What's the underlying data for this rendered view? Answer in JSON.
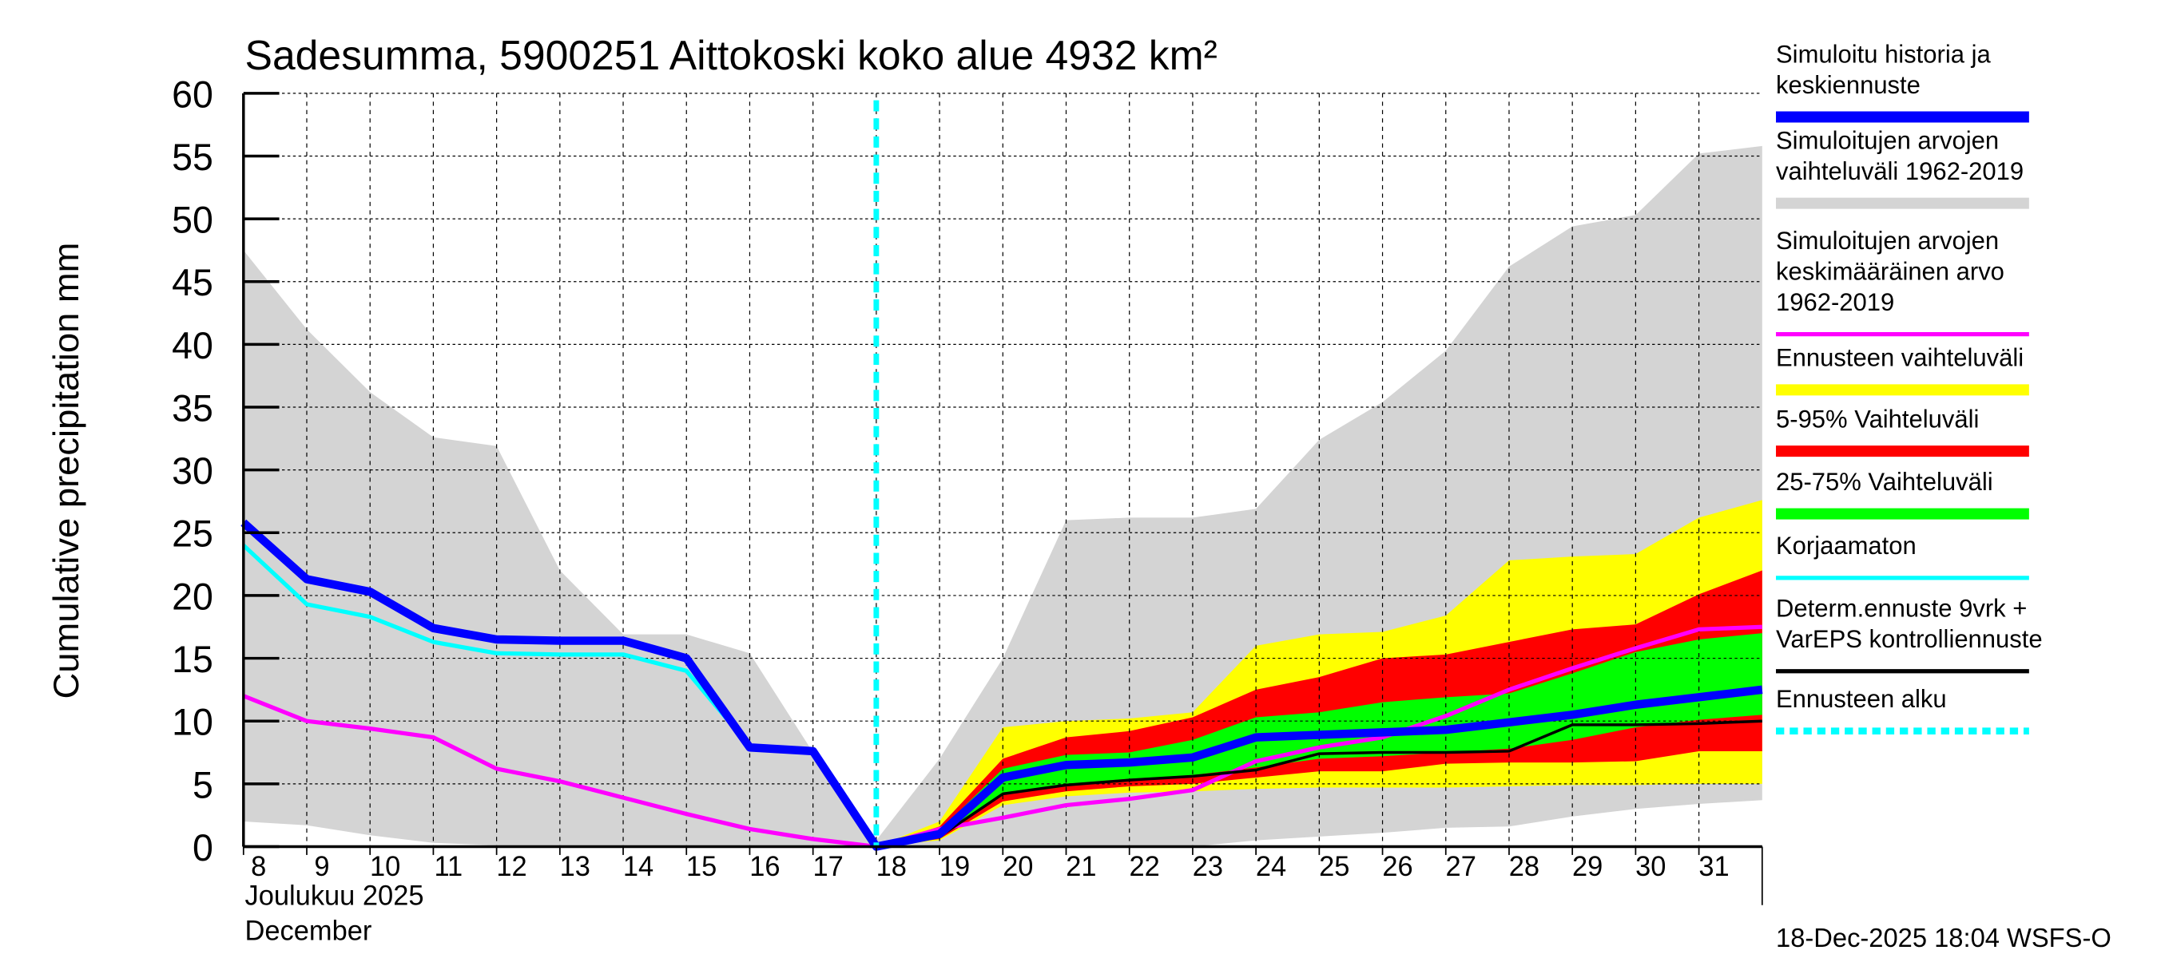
{
  "chart_data": {
    "type": "area",
    "title": "Sadesumma, 5900251 Aittokoski koko alue 4932 km²",
    "ylabel": "Cumulative precipitation   mm",
    "xlabel_lines": [
      "Joulukuu  2025",
      "December"
    ],
    "ylim": [
      0,
      60
    ],
    "xlim": [
      8,
      32
    ],
    "yticks": [
      0,
      5,
      10,
      15,
      20,
      25,
      30,
      35,
      40,
      45,
      50,
      55,
      60
    ],
    "xtick_labels": [
      "8",
      "9",
      "10",
      "11",
      "12",
      "13",
      "14",
      "15",
      "16",
      "17",
      "18",
      "19",
      "20",
      "21",
      "22",
      "23",
      "24",
      "25",
      "26",
      "27",
      "28",
      "29",
      "30",
      "31"
    ],
    "grid": true,
    "legend_position": "right",
    "forecast_start_day": 18,
    "footer": "18-Dec-2025 18:04 WSFS-O",
    "bands": [
      {
        "name": "Simuloitujen arvojen vaihteluväli 1962-2019",
        "color": "#d4d4d4",
        "x": [
          8,
          9,
          10,
          11,
          12,
          13,
          14,
          15,
          16,
          17,
          18,
          19,
          20,
          21,
          22,
          23,
          24,
          25,
          26,
          27,
          28,
          29,
          30,
          31,
          32
        ],
        "upper": [
          47.5,
          41.2,
          36.2,
          32.6,
          31.9,
          22,
          16.9,
          16.9,
          15.4,
          7.5,
          0.5,
          7,
          15,
          26,
          26.2,
          26.2,
          26.9,
          32.4,
          35.4,
          39.5,
          46.2,
          49.4,
          50.3,
          55.2,
          55.8
        ],
        "lower": [
          2,
          1.7,
          0.9,
          0.3,
          0.1,
          0,
          0,
          0,
          0,
          0,
          0,
          0,
          0,
          0,
          0,
          0,
          0.5,
          0.8,
          1.1,
          1.5,
          1.6,
          2.4,
          3,
          3.4,
          3.7
        ]
      },
      {
        "name": "Ennusteen vaihteluväli",
        "color": "#ffff00",
        "x": [
          18,
          19,
          20,
          21,
          22,
          23,
          24,
          25,
          26,
          27,
          28,
          29,
          30,
          31,
          32
        ],
        "upper": [
          0,
          2,
          9.5,
          10,
          10.2,
          10.7,
          16,
          16.9,
          17.1,
          18.4,
          22.8,
          23.1,
          23.3,
          26.2,
          27.6
        ],
        "lower": [
          0,
          0.5,
          3.3,
          4,
          4.3,
          4.4,
          4.6,
          4.7,
          4.7,
          4.7,
          4.8,
          4.9,
          4.9,
          5,
          5
        ]
      },
      {
        "name": "5-95% Vaihteluväli",
        "color": "#ff0000",
        "x": [
          18,
          19,
          20,
          21,
          22,
          23,
          24,
          25,
          26,
          27,
          28,
          29,
          30,
          31,
          32
        ],
        "upper": [
          0,
          1.6,
          7,
          8.7,
          9.2,
          10.3,
          12.5,
          13.5,
          15,
          15.3,
          16.3,
          17.3,
          17.7,
          20.1,
          22
        ],
        "lower": [
          0,
          0.6,
          3.6,
          4.4,
          4.8,
          5,
          5.5,
          6,
          6,
          6.6,
          6.7,
          6.7,
          6.8,
          7.6,
          7.6
        ]
      },
      {
        "name": "25-75% Vaihteluväli",
        "color": "#00ff00",
        "x": [
          18,
          19,
          20,
          21,
          22,
          23,
          24,
          25,
          26,
          27,
          28,
          29,
          30,
          31,
          32
        ],
        "upper": [
          0,
          1.3,
          6.2,
          7.3,
          7.5,
          8.5,
          10.3,
          10.7,
          11.5,
          11.9,
          12.2,
          13.8,
          15.5,
          16.5,
          17
        ],
        "lower": [
          0,
          0.7,
          4.3,
          5,
          5.4,
          5.7,
          6.3,
          7,
          7.2,
          7.5,
          7.8,
          8.5,
          9.5,
          10.1,
          10.5
        ]
      }
    ],
    "series": [
      {
        "name": "Simuloitujen arvojen keskimääräinen arvo 1962-2019",
        "color": "#ff00ff",
        "width": 3,
        "x": [
          8,
          9,
          10,
          11,
          12,
          13,
          14,
          15,
          16,
          17,
          18,
          19,
          20,
          21,
          22,
          23,
          24,
          25,
          26,
          27,
          28,
          29,
          30,
          31,
          32
        ],
        "values": [
          12,
          10,
          9.4,
          8.7,
          6.2,
          5.2,
          3.9,
          2.6,
          1.4,
          0.6,
          0,
          1.4,
          2.3,
          3.3,
          3.8,
          4.5,
          6.8,
          7.9,
          8.7,
          10.4,
          12.5,
          14.2,
          15.8,
          17.3,
          17.5
        ]
      },
      {
        "name": "Korjaamaton",
        "color": "#00ffff",
        "width": 3,
        "x": [
          8,
          9,
          10,
          11,
          12,
          13,
          14,
          15,
          16,
          17,
          18
        ],
        "values": [
          24,
          19.3,
          18.3,
          16.3,
          15.4,
          15.3,
          15.3,
          14,
          8,
          7.6,
          0
        ]
      },
      {
        "name": "Determ.ennuste 9vrk + VarEPS kontrolliennuste",
        "color": "#000000",
        "width": 2,
        "x": [
          18,
          19,
          20,
          21,
          22,
          23,
          24,
          25,
          26,
          27,
          28,
          29,
          30,
          31,
          32
        ],
        "values": [
          0,
          0.8,
          4.2,
          4.9,
          5.3,
          5.6,
          6.1,
          7.4,
          7.5,
          7.5,
          7.6,
          9.7,
          9.7,
          9.8,
          10
        ]
      },
      {
        "name": "Simuloitu historia ja keskiennuste",
        "color": "#0000ff",
        "width": 6,
        "x": [
          8,
          9,
          10,
          11,
          12,
          13,
          14,
          15,
          16,
          17,
          18,
          19,
          20,
          21,
          22,
          23,
          24,
          25,
          26,
          27,
          28,
          29,
          30,
          31,
          32
        ],
        "values": [
          25.8,
          21.3,
          20.3,
          17.4,
          16.5,
          16.4,
          16.4,
          15,
          7.9,
          7.6,
          0,
          1,
          5.5,
          6.5,
          6.7,
          7.1,
          8.7,
          8.9,
          9.1,
          9.3,
          9.9,
          10.5,
          11.3,
          11.9,
          12.5
        ]
      }
    ],
    "legend": [
      {
        "lines": [
          "Simuloitu historia ja",
          "keskiennuste"
        ],
        "color": "#0000ff",
        "style": "thick"
      },
      {
        "lines": [
          "Simuloitujen arvojen",
          "vaihteluväli 1962-2019"
        ],
        "color": "#d4d4d4",
        "style": "thick"
      },
      {
        "lines": [
          "Simuloitujen arvojen",
          "keskimääräinen arvo",
          "   1962-2019"
        ],
        "color": "#ff00ff",
        "style": "thin"
      },
      {
        "lines": [
          "Ennusteen vaihteluväli"
        ],
        "color": "#ffff00",
        "style": "thick"
      },
      {
        "lines": [
          "5-95% Vaihteluväli"
        ],
        "color": "#ff0000",
        "style": "thick"
      },
      {
        "lines": [
          "25-75% Vaihteluväli"
        ],
        "color": "#00ff00",
        "style": "thick"
      },
      {
        "lines": [
          "Korjaamaton"
        ],
        "color": "#00ffff",
        "style": "thin"
      },
      {
        "lines": [
          "Determ.ennuste 9vrk +",
          "VarEPS kontrolliennuste"
        ],
        "color": "#000000",
        "style": "thin"
      },
      {
        "lines": [
          "Ennusteen alku"
        ],
        "color": "#00ffff",
        "style": "dashed"
      }
    ]
  }
}
